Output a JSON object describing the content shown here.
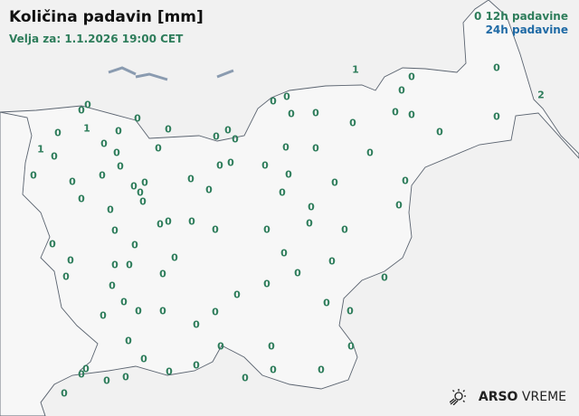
{
  "header": {
    "title": "Količina padavin [mm]",
    "valid_for": "Velja za: 1.1.2026 19:00 CET"
  },
  "legend": {
    "sample_value": "0",
    "label_12h": "12h padavine",
    "label_24h": "24h padavine",
    "color_12h": "#2e7d5b",
    "color_24h": "#1f6aa5"
  },
  "logo": {
    "brand": "ARSO",
    "product": "VREME"
  },
  "stations": [
    "1",
    "0",
    "0",
    "0",
    "2",
    "0",
    "0",
    "0",
    "0",
    "0",
    "0",
    "0",
    "0",
    "0",
    "0",
    "0",
    "0",
    "0",
    "1",
    "0",
    "0",
    "0",
    "0",
    "0",
    "1",
    "0",
    "0",
    "0",
    "0",
    "0",
    "0",
    "0",
    "0",
    "0",
    "0",
    "0",
    "0",
    "0",
    "0",
    "0",
    "0",
    "0",
    "0",
    "0",
    "0",
    "0",
    "0",
    "0",
    "0",
    "0",
    "0",
    "0",
    "0",
    "0",
    "0",
    "0",
    "0",
    "0",
    "0",
    "0",
    "0",
    "0",
    "0",
    "0",
    "0",
    "0",
    "0",
    "0",
    "0",
    "0",
    "0",
    "0",
    "0",
    "0",
    "0",
    "0",
    "0",
    "0",
    "0",
    "0",
    "0",
    "0",
    "0",
    "0",
    "0",
    "0",
    "0",
    "0",
    "0",
    "0",
    "0",
    "0",
    "0",
    "0",
    "0",
    "0",
    "0",
    "0",
    "0",
    "0",
    "0"
  ]
}
